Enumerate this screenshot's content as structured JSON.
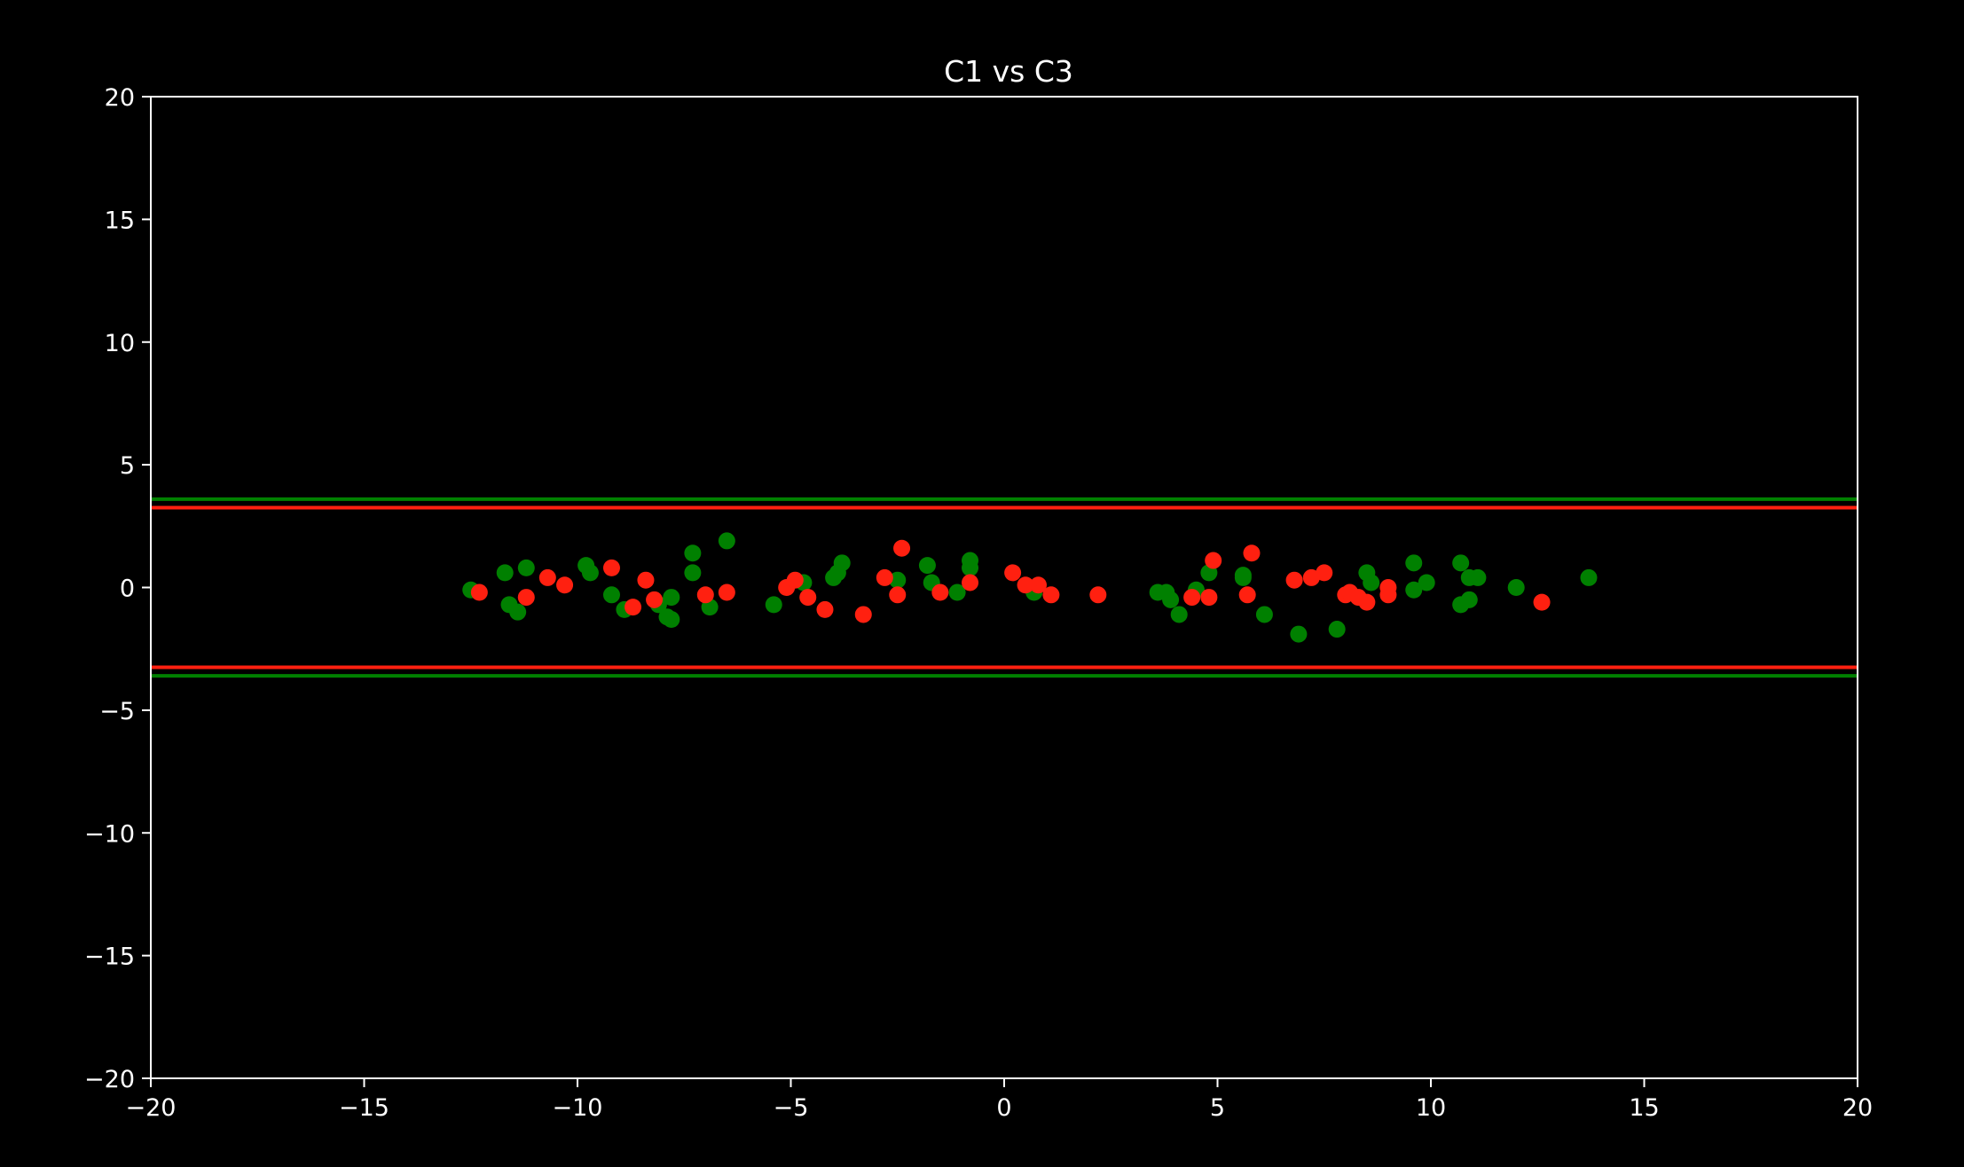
{
  "chart_data": {
    "type": "scatter",
    "title": "C1 vs C3",
    "xlabel": "",
    "ylabel": "",
    "xlim": [
      -20,
      20
    ],
    "ylim": [
      -20,
      20
    ],
    "xticks": [
      -20,
      -15,
      -10,
      -5,
      0,
      5,
      10,
      15,
      20
    ],
    "yticks": [
      -20,
      -15,
      -10,
      -5,
      0,
      5,
      10,
      15,
      20
    ],
    "xtick_labels": [
      "−20",
      "−15",
      "−10",
      "−5",
      "0",
      "5",
      "10",
      "15",
      "20"
    ],
    "ytick_labels": [
      "−20",
      "−15",
      "−10",
      "−5",
      "0",
      "5",
      "10",
      "15",
      "20"
    ],
    "grid": false,
    "background": "#000000",
    "axis_color": "#ffffff",
    "series": [
      {
        "color": "#008000",
        "points": [
          [
            -12.5,
            -0.1
          ],
          [
            -11.7,
            0.6
          ],
          [
            -11.6,
            -0.7
          ],
          [
            -11.4,
            -1.0
          ],
          [
            -11.2,
            0.8
          ],
          [
            -9.8,
            0.9
          ],
          [
            -9.7,
            0.6
          ],
          [
            -9.2,
            -0.3
          ],
          [
            -8.9,
            -0.9
          ],
          [
            -8.1,
            -0.7
          ],
          [
            -7.8,
            -0.4
          ],
          [
            -7.9,
            -1.2
          ],
          [
            -7.8,
            -1.3
          ],
          [
            -7.3,
            0.6
          ],
          [
            -7.3,
            1.4
          ],
          [
            -6.9,
            -0.8
          ],
          [
            -6.5,
            1.9
          ],
          [
            -5.4,
            -0.7
          ],
          [
            -4.7,
            0.2
          ],
          [
            -4.0,
            0.4
          ],
          [
            -3.9,
            0.6
          ],
          [
            -3.8,
            1.0
          ],
          [
            -2.5,
            0.3
          ],
          [
            -1.8,
            0.9
          ],
          [
            -1.7,
            0.2
          ],
          [
            -1.1,
            -0.2
          ],
          [
            -0.8,
            1.1
          ],
          [
            -0.8,
            0.8
          ],
          [
            0.7,
            -0.2
          ],
          [
            3.6,
            -0.2
          ],
          [
            3.8,
            -0.2
          ],
          [
            3.9,
            -0.5
          ],
          [
            4.1,
            -1.1
          ],
          [
            4.5,
            -0.1
          ],
          [
            4.8,
            0.6
          ],
          [
            5.6,
            0.4
          ],
          [
            5.6,
            0.5
          ],
          [
            6.1,
            -1.1
          ],
          [
            6.9,
            -1.9
          ],
          [
            7.8,
            -1.7
          ],
          [
            8.5,
            0.6
          ],
          [
            8.6,
            0.2
          ],
          [
            9.6,
            -0.1
          ],
          [
            9.6,
            1.0
          ],
          [
            9.9,
            0.2
          ],
          [
            10.7,
            1.0
          ],
          [
            10.7,
            -0.7
          ],
          [
            10.9,
            0.4
          ],
          [
            10.9,
            -0.5
          ],
          [
            11.1,
            0.4
          ],
          [
            12.0,
            0.0
          ],
          [
            13.7,
            0.4
          ]
        ]
      },
      {
        "color": "#ff2010",
        "points": [
          [
            -12.3,
            -0.2
          ],
          [
            -11.2,
            -0.4
          ],
          [
            -10.7,
            0.4
          ],
          [
            -10.3,
            0.1
          ],
          [
            -9.2,
            0.8
          ],
          [
            -8.7,
            -0.8
          ],
          [
            -8.4,
            0.3
          ],
          [
            -8.2,
            -0.5
          ],
          [
            -7.0,
            -0.3
          ],
          [
            -6.5,
            -0.2
          ],
          [
            -5.1,
            0.0
          ],
          [
            -4.9,
            0.3
          ],
          [
            -4.6,
            -0.4
          ],
          [
            -4.2,
            -0.9
          ],
          [
            -3.3,
            -1.1
          ],
          [
            -2.8,
            0.4
          ],
          [
            -2.5,
            -0.3
          ],
          [
            -2.4,
            1.6
          ],
          [
            -1.5,
            -0.2
          ],
          [
            -0.8,
            0.2
          ],
          [
            0.2,
            0.6
          ],
          [
            0.5,
            0.1
          ],
          [
            0.8,
            0.1
          ],
          [
            1.1,
            -0.3
          ],
          [
            2.2,
            -0.3
          ],
          [
            4.4,
            -0.4
          ],
          [
            4.8,
            -0.4
          ],
          [
            4.9,
            1.1
          ],
          [
            5.7,
            -0.3
          ],
          [
            5.8,
            1.4
          ],
          [
            6.8,
            0.3
          ],
          [
            7.2,
            0.4
          ],
          [
            7.5,
            0.6
          ],
          [
            8.0,
            -0.3
          ],
          [
            8.1,
            -0.2
          ],
          [
            8.3,
            -0.4
          ],
          [
            8.5,
            -0.6
          ],
          [
            9.0,
            -0.3
          ],
          [
            9.0,
            0.0
          ],
          [
            12.6,
            -0.6
          ]
        ]
      }
    ],
    "hlines": [
      {
        "color": "#008000",
        "y": 3.6
      },
      {
        "color": "#ff2010",
        "y": 3.25
      },
      {
        "color": "#ff2010",
        "y": -3.25
      },
      {
        "color": "#008000",
        "y": -3.6
      }
    ]
  }
}
